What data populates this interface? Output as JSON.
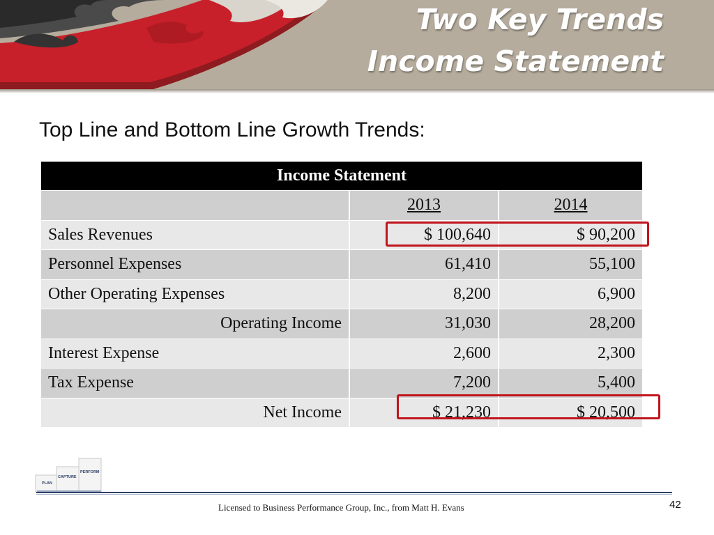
{
  "slide": {
    "title_line1": "Two Key Trends",
    "title_line2": "Income Statement",
    "subtitle": "Top Line and Bottom Line Growth Trends:",
    "footer": "Licensed to Business Performance Group, Inc., from Matt H. Evans",
    "page_number": "42"
  },
  "table": {
    "title": "Income Statement",
    "year1": "2013",
    "year2": "2014",
    "rows": [
      {
        "label": "Sales Revenues",
        "v2013": "$ 100,640",
        "v2014": "$ 90,200"
      },
      {
        "label": "Personnel Expenses",
        "v2013": "61,410",
        "v2014": "55,100"
      },
      {
        "label": "Other Operating Expenses",
        "v2013": "8,200",
        "v2014": "6,900"
      },
      {
        "label": "Operating Income",
        "v2013": "31,030",
        "v2014": "28,200"
      },
      {
        "label": "Interest Expense",
        "v2013": "2,600",
        "v2014": "2,300"
      },
      {
        "label": "Tax Expense",
        "v2013": "7,200",
        "v2014": "5,400"
      },
      {
        "label": "Net Income",
        "v2013": "$ 21,230",
        "v2014": "$ 20,500"
      }
    ]
  },
  "logo": {
    "steps": [
      "PLAN",
      "CAPTURE",
      "PERFORM"
    ]
  },
  "colors": {
    "header_band": "#b5ac9d",
    "highlight": "#c0141c",
    "table_header": "#000000"
  }
}
